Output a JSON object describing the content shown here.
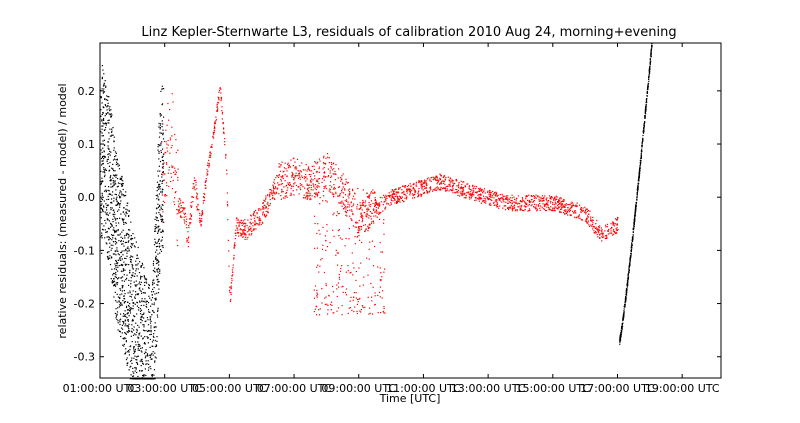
{
  "chart_data": {
    "type": "scatter",
    "title": "Linz Kepler-Sternwarte L3, residuals of calibration 2010 Aug 24, morning+evening",
    "xlabel": "Time [UTC]",
    "ylabel": "relative residuals: (measured - model) / model",
    "xlim": [
      1.0,
      20.2
    ],
    "ylim": [
      -0.34,
      0.29
    ],
    "x_ticks": [
      1,
      3,
      5,
      7,
      9,
      11,
      13,
      15,
      17,
      19
    ],
    "x_tick_labels": [
      "01:00:00 UTC",
      "03:00:00 UTC",
      "05:00:00 UTC",
      "07:00:00 UTC",
      "09:00:00 UTC",
      "11:00:00 UTC",
      "13:00:00 UTC",
      "15:00:00 UTC",
      "17:00:00 UTC",
      "19:00:00 UTC"
    ],
    "y_ticks": [
      -0.3,
      -0.2,
      -0.1,
      0.0,
      0.1,
      0.2
    ],
    "y_tick_labels": [
      "-0.3",
      "-0.2",
      "-0.1",
      "0.0",
      "0.1",
      "0.2"
    ],
    "grid": false,
    "legend": "none",
    "series": [
      {
        "color": "#000000",
        "description_points": [
          [
            1.05,
            0.1
          ],
          [
            1.3,
            0.02
          ],
          [
            1.5,
            -0.08
          ],
          [
            1.8,
            -0.15
          ],
          [
            2.0,
            -0.22
          ],
          [
            2.2,
            -0.26
          ],
          [
            2.4,
            -0.3
          ],
          [
            2.6,
            -0.33
          ],
          [
            2.75,
            -0.1
          ],
          [
            2.85,
            0.05
          ]
        ],
        "segments": [
          {
            "x_start": 1.0,
            "x_end": 2.95,
            "center_start": 0.05,
            "center_end": -0.2,
            "spread": 0.16
          },
          {
            "x_start": 17.05,
            "x_end": 18.05,
            "center_start": -0.27,
            "center_end": 0.29,
            "spread": 0.006
          }
        ]
      },
      {
        "color": "#ff0000",
        "points": [
          [
            2.9,
            0.0
          ],
          [
            3.1,
            0.1
          ],
          [
            3.2,
            0.12
          ],
          [
            3.4,
            -0.01
          ],
          [
            3.6,
            -0.03
          ],
          [
            3.7,
            -0.08
          ],
          [
            3.9,
            0.03
          ],
          [
            4.1,
            -0.05
          ],
          [
            4.3,
            0.05
          ],
          [
            4.5,
            0.12
          ],
          [
            4.7,
            0.21
          ],
          [
            4.9,
            0.05
          ],
          [
            5.0,
            -0.2
          ],
          [
            5.2,
            -0.05
          ],
          [
            5.5,
            -0.06
          ],
          [
            6.0,
            -0.03
          ],
          [
            6.5,
            0.03
          ],
          [
            7.0,
            0.04
          ],
          [
            7.5,
            0.03
          ],
          [
            8.0,
            0.05
          ],
          [
            8.5,
            0.01
          ],
          [
            9.0,
            -0.04
          ],
          [
            9.5,
            -0.02
          ],
          [
            10.0,
            0.0
          ],
          [
            10.5,
            0.01
          ],
          [
            11.0,
            0.02
          ],
          [
            11.5,
            0.03
          ],
          [
            12.0,
            0.02
          ],
          [
            12.5,
            0.01
          ],
          [
            13.0,
            0.0
          ],
          [
            13.5,
            -0.01
          ],
          [
            14.0,
            -0.01
          ],
          [
            14.5,
            -0.01
          ],
          [
            15.0,
            -0.01
          ],
          [
            15.5,
            -0.02
          ],
          [
            16.0,
            -0.03
          ],
          [
            16.5,
            -0.07
          ],
          [
            17.0,
            -0.05
          ]
        ],
        "scatter_cloud": {
          "x_start": 7.6,
          "x_end": 9.8,
          "y_min": -0.22,
          "y_max": 0.02
        }
      }
    ]
  }
}
